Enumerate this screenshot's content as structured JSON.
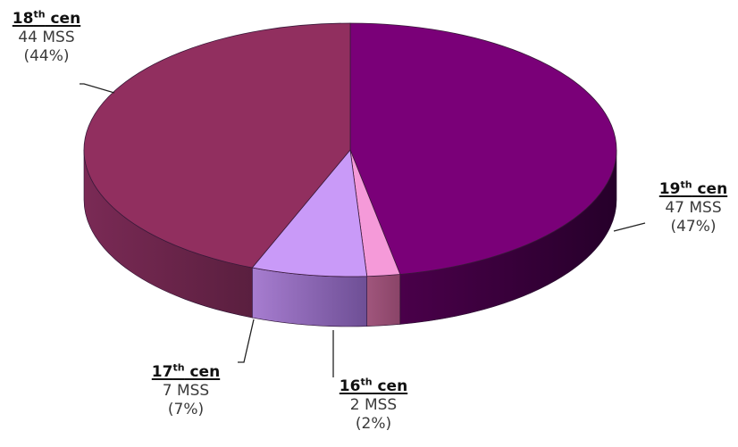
{
  "chart_data": {
    "type": "pie",
    "style": "3d",
    "title": "",
    "slices": [
      {
        "century": "19",
        "suffix": "th",
        "word": "cen",
        "count_text": "47 MSS",
        "pct_text": "(47%)",
        "value": 47,
        "color": "#7a0078"
      },
      {
        "century": "16",
        "suffix": "th",
        "word": "cen",
        "count_text": "2 MSS",
        "pct_text": "(2%)",
        "value": 2,
        "color": "#f59ad9"
      },
      {
        "century": "17",
        "suffix": "th",
        "word": "cen",
        "count_text": "7 MSS",
        "pct_text": "(7%)",
        "value": 7,
        "color": "#c99af8"
      },
      {
        "century": "18",
        "suffix": "th",
        "word": "cen",
        "count_text": "44 MSS",
        "pct_text": "(44%)",
        "value": 44,
        "color": "#912f5f"
      }
    ]
  }
}
